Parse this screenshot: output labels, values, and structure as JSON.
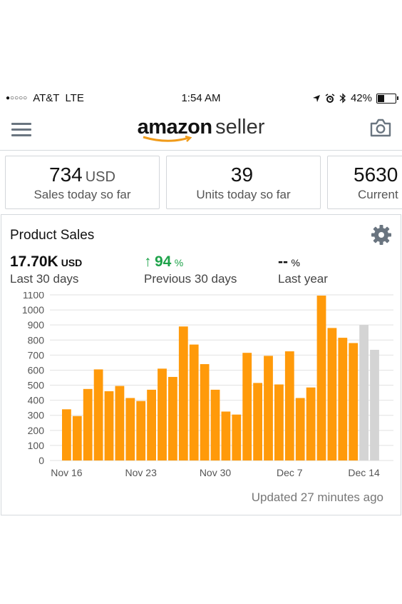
{
  "status_bar": {
    "carrier": "AT&T",
    "network": "LTE",
    "time": "1:54 AM",
    "battery": "42%",
    "battery_level": 0.42,
    "signal": "●○○○○"
  },
  "header": {
    "logo_brand": "amazon",
    "logo_product": "seller",
    "icons": [
      "menu-icon",
      "camera-icon"
    ]
  },
  "cards": [
    {
      "value": "734",
      "unit": "USD",
      "label": "Sales today so far"
    },
    {
      "value": "39",
      "unit": "",
      "label": "Units today so far"
    },
    {
      "value": "5630",
      "unit": "",
      "label": "Current"
    }
  ],
  "panel": {
    "title": "Product Sales",
    "metrics": {
      "last30": {
        "value": "17.70K",
        "unit": "USD",
        "label": "Last 30 days"
      },
      "prev30": {
        "arrow": "↑",
        "value": "94",
        "unit": "%",
        "label": "Previous 30 days"
      },
      "last_year": {
        "value": "--",
        "unit": "%",
        "label": "Last year"
      }
    },
    "updated": "Updated 27 minutes ago"
  },
  "chart_data": {
    "type": "bar",
    "x_ticks": [
      "Nov 16",
      "Nov 23",
      "Nov 30",
      "Dec 7",
      "Dec 14"
    ],
    "y_ticks": [
      0,
      100,
      200,
      300,
      400,
      500,
      600,
      700,
      800,
      900,
      1000,
      1100
    ],
    "ylim": [
      0,
      1100
    ],
    "grid": true,
    "colors": {
      "actual": "#ff9a0a",
      "projected": "#d4d4d4",
      "grid": "#e2e2e2",
      "axis_text": "#555555"
    },
    "bars": [
      {
        "value": 340,
        "projected": false
      },
      {
        "value": 295,
        "projected": false
      },
      {
        "value": 475,
        "projected": false
      },
      {
        "value": 605,
        "projected": false
      },
      {
        "value": 460,
        "projected": false
      },
      {
        "value": 495,
        "projected": false
      },
      {
        "value": 415,
        "projected": false
      },
      {
        "value": 395,
        "projected": false
      },
      {
        "value": 470,
        "projected": false
      },
      {
        "value": 610,
        "projected": false
      },
      {
        "value": 555,
        "projected": false
      },
      {
        "value": 890,
        "projected": false
      },
      {
        "value": 770,
        "projected": false
      },
      {
        "value": 640,
        "projected": false
      },
      {
        "value": 470,
        "projected": false
      },
      {
        "value": 325,
        "projected": false
      },
      {
        "value": 305,
        "projected": false
      },
      {
        "value": 715,
        "projected": false
      },
      {
        "value": 515,
        "projected": false
      },
      {
        "value": 695,
        "projected": false
      },
      {
        "value": 505,
        "projected": false
      },
      {
        "value": 725,
        "projected": false
      },
      {
        "value": 415,
        "projected": false
      },
      {
        "value": 485,
        "projected": false
      },
      {
        "value": 1095,
        "projected": false
      },
      {
        "value": 880,
        "projected": false
      },
      {
        "value": 815,
        "projected": false
      },
      {
        "value": 780,
        "projected": false
      },
      {
        "value": 900,
        "projected": true
      },
      {
        "value": 735,
        "projected": true
      }
    ]
  }
}
